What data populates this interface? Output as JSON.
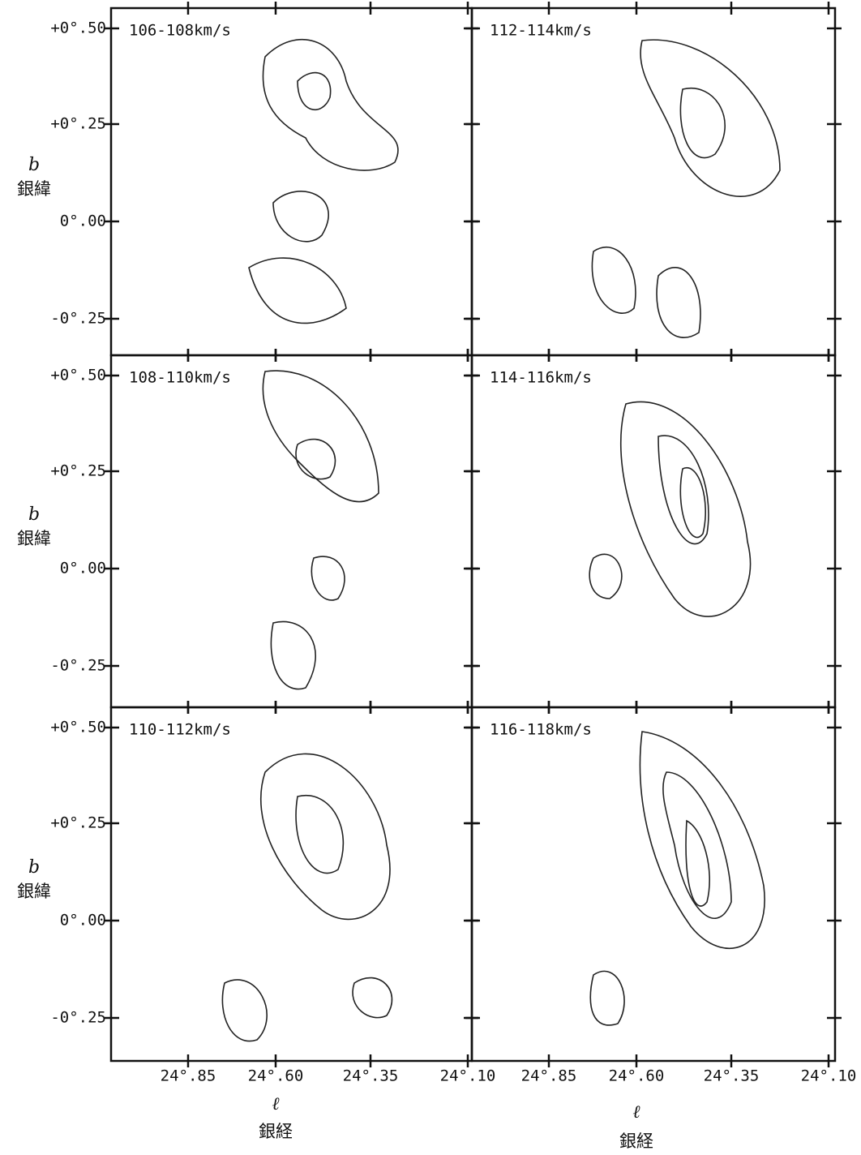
{
  "panels": [
    {
      "label": "106-108km/s"
    },
    {
      "label": "108-110km/s"
    },
    {
      "label": "110-112km/s"
    },
    {
      "label": "112-114km/s"
    },
    {
      "label": "114-116km/s"
    },
    {
      "label": "116-118km/s"
    }
  ],
  "y_axis": {
    "symbol": "b",
    "name": "銀緯",
    "ticks": [
      "+0°.50",
      "+0°.25",
      "0°.00",
      "-0°.25"
    ]
  },
  "x_axis": {
    "symbol": "ℓ",
    "name": "銀経",
    "ticks": [
      "24°.85",
      "24°.60",
      "24°.35",
      "24°.10"
    ]
  }
}
